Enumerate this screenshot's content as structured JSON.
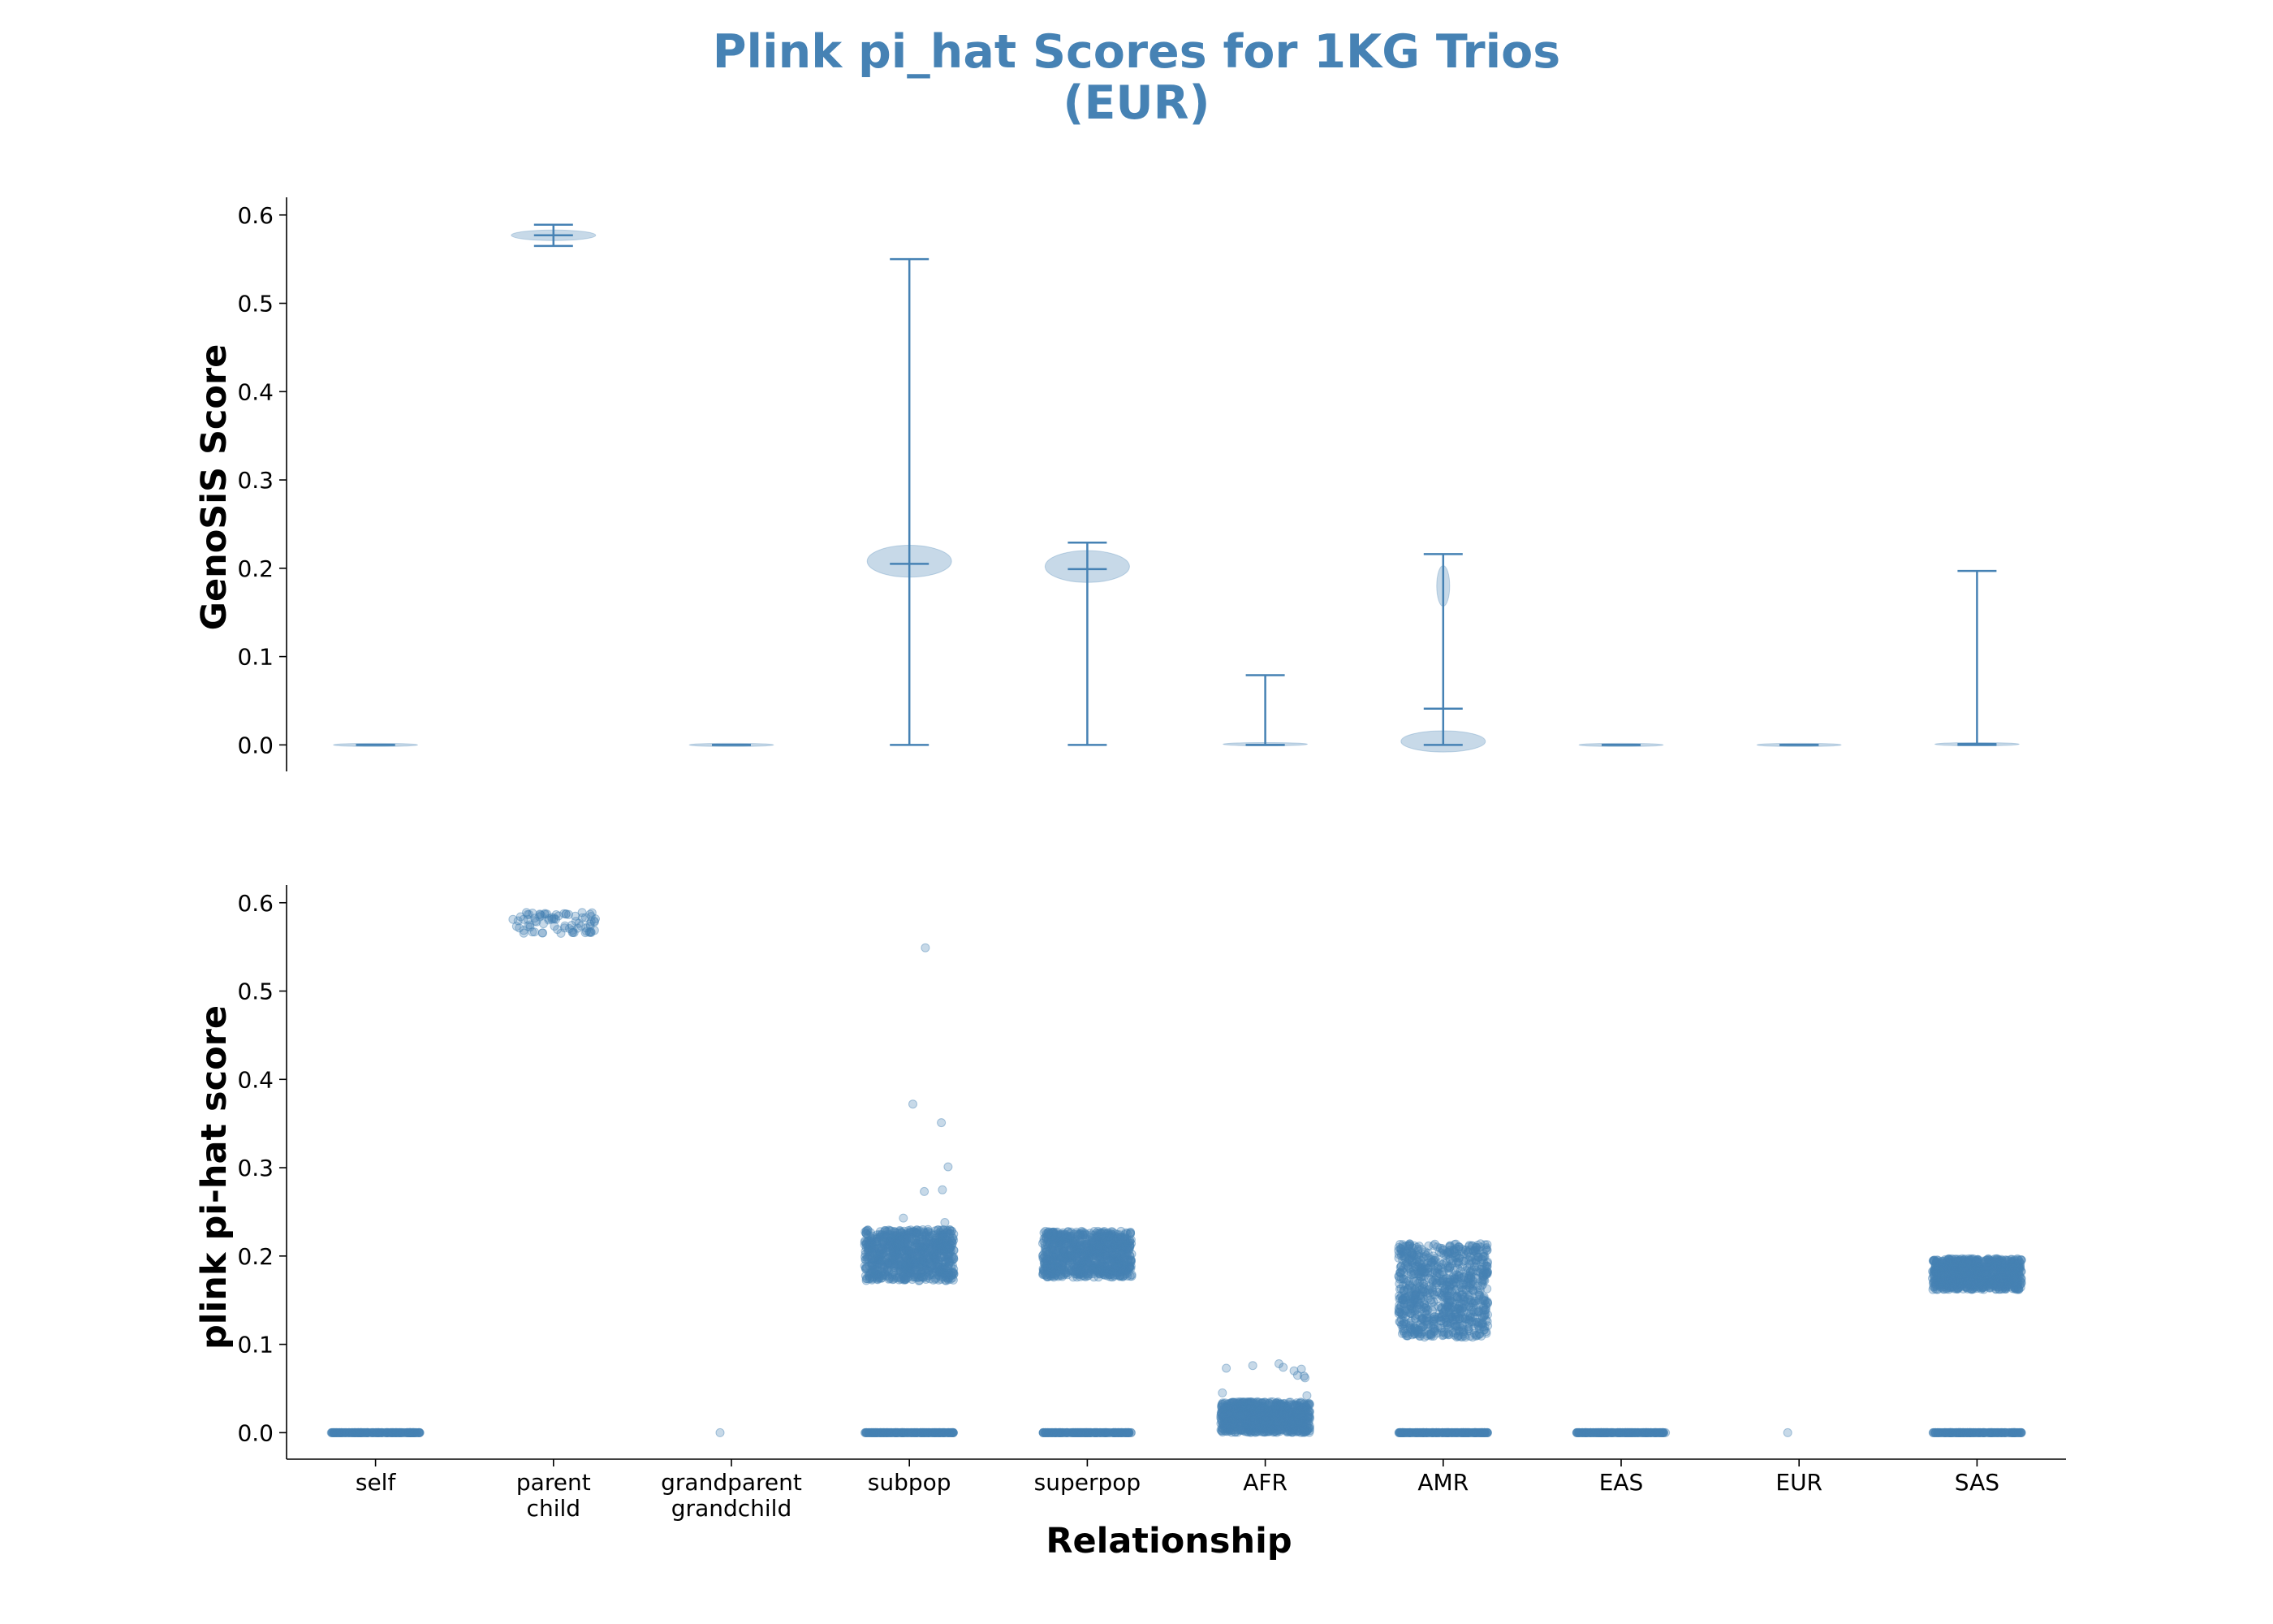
{
  "title_lines": [
    "Plink pi_hat Scores for 1KG Trios",
    "(EUR)"
  ],
  "colors": {
    "accent": "#4682b4",
    "axis": "#000000"
  },
  "chart_data": [
    {
      "type": "violin",
      "ylabel": "GenoSiS Score",
      "ylim": [
        -0.03,
        0.62
      ],
      "y_ticks": [
        "0.0",
        "0.1",
        "0.2",
        "0.3",
        "0.4",
        "0.5",
        "0.6"
      ],
      "grid": false,
      "categories": [
        "self",
        "parent child",
        "grandparent grandchild",
        "subpop",
        "superpop",
        "AFR",
        "AMR",
        "EAS",
        "EUR",
        "SAS"
      ],
      "series": [
        {
          "category": "self",
          "min": 0.0,
          "median": 0.0,
          "max": 0.0
        },
        {
          "category": "parent child",
          "min": 0.565,
          "median": 0.577,
          "max": 0.589
        },
        {
          "category": "grandparent grandchild",
          "min": 0.0,
          "median": 0.0,
          "max": 0.0
        },
        {
          "category": "subpop",
          "min": 0.0,
          "median": 0.205,
          "max": 0.55
        },
        {
          "category": "superpop",
          "min": 0.0,
          "median": 0.199,
          "max": 0.229
        },
        {
          "category": "AFR",
          "min": 0.0,
          "median": 0.0,
          "max": 0.079
        },
        {
          "category": "AMR",
          "min": 0.0,
          "median": 0.041,
          "max": 0.216
        },
        {
          "category": "EAS",
          "min": 0.0,
          "median": 0.0,
          "max": 0.0
        },
        {
          "category": "EUR",
          "min": 0.0,
          "median": 0.0,
          "max": 0.0
        },
        {
          "category": "SAS",
          "min": 0.0,
          "median": 0.001,
          "max": 0.197
        }
      ]
    },
    {
      "type": "scatter",
      "ylabel": "plink pi-hat score",
      "xlabel": "Relationship",
      "ylim": [
        -0.03,
        0.62
      ],
      "y_ticks": [
        "0.0",
        "0.1",
        "0.2",
        "0.3",
        "0.4",
        "0.5",
        "0.6"
      ],
      "grid": false,
      "categories": [
        "self",
        "parent\nchild",
        "grandparent\ngrandchild",
        "subpop",
        "superpop",
        "AFR",
        "AMR",
        "EAS",
        "EUR",
        "SAS"
      ],
      "series": [
        {
          "category": "self",
          "clusters": [
            {
              "low": 0.0,
              "high": 0.0
            }
          ],
          "points": [
            0.0
          ]
        },
        {
          "category": "parent child",
          "clusters": [
            {
              "low": 0.565,
              "high": 0.589
            }
          ],
          "points": []
        },
        {
          "category": "grandparent grandchild",
          "clusters": [],
          "points": [
            0.0
          ]
        },
        {
          "category": "subpop",
          "clusters": [
            {
              "low": 0.172,
              "high": 0.23
            },
            {
              "low": 0.0,
              "high": 0.0
            }
          ],
          "points": [
            0.549,
            0.372,
            0.351,
            0.301,
            0.275,
            0.273,
            0.243,
            0.238
          ]
        },
        {
          "category": "superpop",
          "clusters": [
            {
              "low": 0.176,
              "high": 0.228
            },
            {
              "low": 0.0,
              "high": 0.0
            }
          ],
          "points": []
        },
        {
          "category": "AFR",
          "clusters": [
            {
              "low": 0.0,
              "high": 0.035
            }
          ],
          "points": [
            0.078,
            0.076,
            0.074,
            0.073,
            0.072,
            0.07,
            0.065,
            0.064,
            0.062,
            0.045,
            0.042
          ]
        },
        {
          "category": "AMR",
          "clusters": [
            {
              "low": 0.108,
              "high": 0.214
            },
            {
              "low": 0.0,
              "high": 0.0
            }
          ],
          "points": []
        },
        {
          "category": "EAS",
          "clusters": [
            {
              "low": 0.0,
              "high": 0.0
            }
          ],
          "points": []
        },
        {
          "category": "EUR",
          "clusters": [],
          "points": [
            0.0
          ]
        },
        {
          "category": "SAS",
          "clusters": [
            {
              "low": 0.162,
              "high": 0.197
            },
            {
              "low": 0.0,
              "high": 0.0
            }
          ],
          "points": []
        }
      ]
    }
  ]
}
